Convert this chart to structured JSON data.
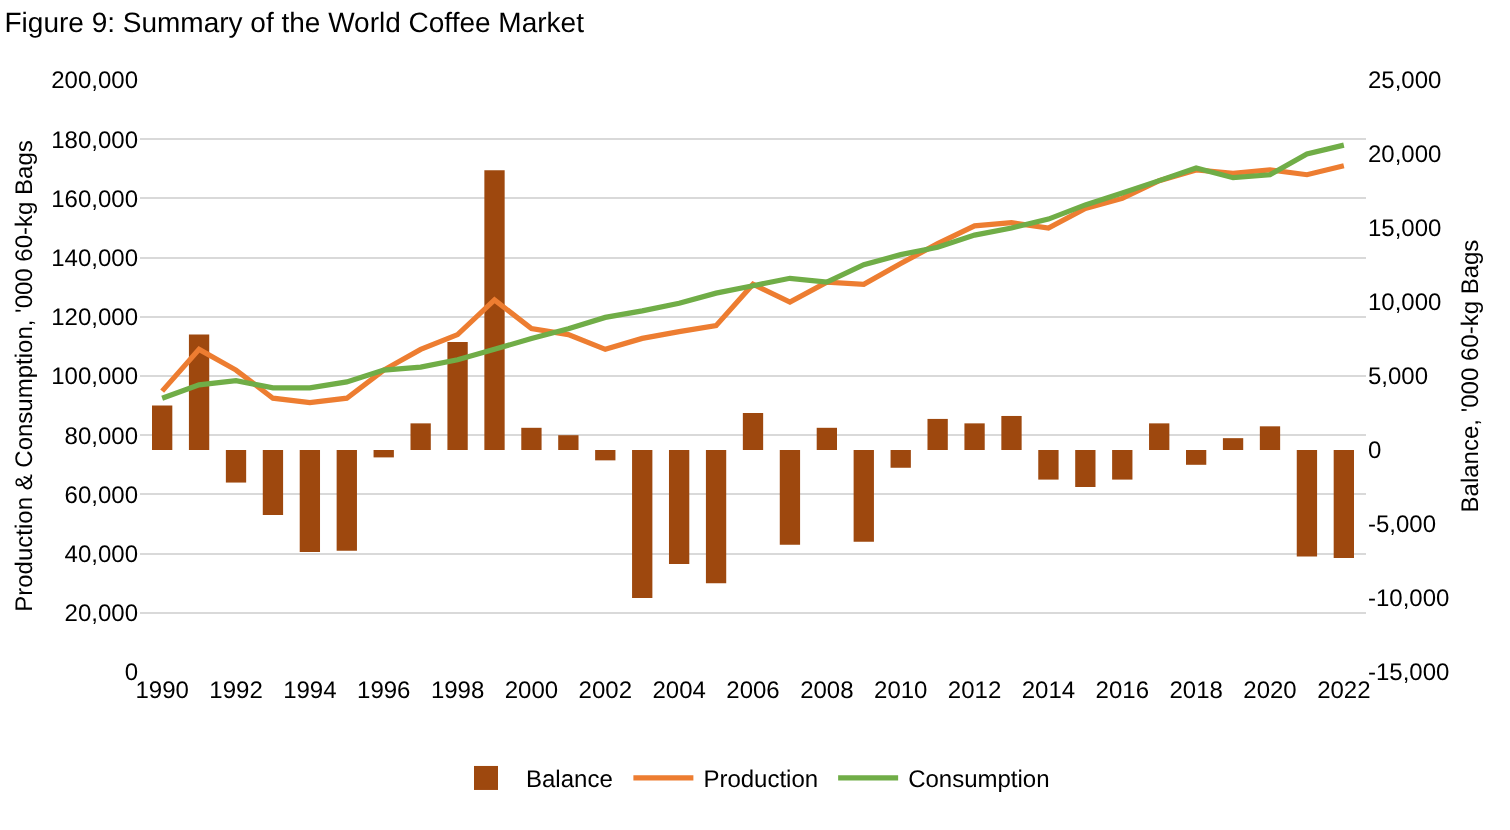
{
  "chart_data": {
    "type": "line",
    "title": "Figure 9: Summary of the World Coffee Market",
    "ylabel": "Production & Consumption, '000 60-kg Bags",
    "y2label": "Balance, '000 60-kg Bags",
    "x": [
      1990,
      1991,
      1992,
      1993,
      1994,
      1995,
      1996,
      1997,
      1998,
      1999,
      2000,
      2001,
      2002,
      2003,
      2004,
      2005,
      2006,
      2007,
      2008,
      2009,
      2010,
      2011,
      2012,
      2013,
      2014,
      2015,
      2016,
      2017,
      2018,
      2019,
      2020,
      2021,
      2022
    ],
    "series": [
      {
        "name": "Balance",
        "type": "bar",
        "axis": "y2",
        "color": "#9e480e",
        "values": [
          3000,
          7800,
          -2200,
          -4400,
          -6900,
          -6800,
          -500,
          1800,
          7300,
          18900,
          1500,
          1000,
          -700,
          -10000,
          -7700,
          -9000,
          2500,
          -6400,
          1500,
          -6200,
          -1200,
          2100,
          1800,
          2300,
          -2000,
          -2500,
          -2000,
          1800,
          -1000,
          800,
          1600,
          -7200,
          -7300
        ]
      },
      {
        "name": "Production",
        "axis": "y",
        "color": "#ed7d31",
        "values": [
          94900,
          109000,
          102000,
          92500,
          91000,
          92500,
          102000,
          109000,
          114000,
          125700,
          116000,
          114000,
          109000,
          112700,
          115000,
          117000,
          131000,
          125000,
          131700,
          131000,
          138000,
          144700,
          150700,
          151800,
          150000,
          156600,
          160000,
          166000,
          169600,
          168500,
          169600,
          168000,
          171000
        ]
      },
      {
        "name": "Consumption",
        "axis": "y",
        "color": "#70ad47",
        "values": [
          92500,
          97000,
          98400,
          96000,
          96000,
          98000,
          102000,
          103000,
          105500,
          109000,
          112700,
          116000,
          119800,
          122000,
          124600,
          128000,
          130500,
          133000,
          131700,
          137600,
          141000,
          143500,
          147600,
          150000,
          153000,
          157800,
          161800,
          166000,
          170300,
          167000,
          168000,
          175000,
          178000
        ]
      }
    ],
    "xlim": [
      1989.4,
      2022.6
    ],
    "xticks": [
      1990,
      1992,
      1994,
      1996,
      1998,
      2000,
      2002,
      2004,
      2006,
      2008,
      2010,
      2012,
      2014,
      2016,
      2018,
      2020,
      2022
    ],
    "ylim": [
      0,
      200000
    ],
    "yticks": [
      0,
      {
        "value": 20000,
        "label": "20,000"
      },
      {
        "value": 40000,
        "label": "40,000"
      },
      {
        "value": 60000,
        "label": "60,000"
      },
      {
        "value": 80000,
        "label": "80,000"
      },
      {
        "value": 100000,
        "label": "100,000"
      },
      {
        "value": 120000,
        "label": "120,000"
      },
      {
        "value": 140000,
        "label": "140,000"
      },
      {
        "value": 160000,
        "label": "160,000"
      },
      {
        "value": 180000,
        "label": "180,000"
      },
      {
        "value": 200000,
        "label": "200,000"
      }
    ],
    "y2lim": [
      -15000,
      25000
    ],
    "y2ticks": [
      {
        "value": -15000,
        "label": "-15,000"
      },
      {
        "value": -10000,
        "label": "-10,000"
      },
      {
        "value": -5000,
        "label": "-5,000"
      },
      0,
      {
        "value": 5000,
        "label": "5,000"
      },
      {
        "value": 10000,
        "label": "10,000"
      },
      {
        "value": 15000,
        "label": "15,000"
      },
      {
        "value": 20000,
        "label": "20,000"
      },
      {
        "value": 25000,
        "label": "25,000"
      }
    ],
    "grid": "y",
    "legend": "bottom"
  }
}
